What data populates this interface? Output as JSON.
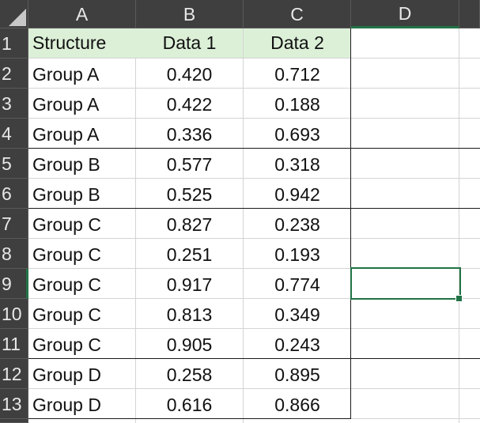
{
  "sheet": {
    "columns": [
      "A",
      "B",
      "C",
      "D"
    ],
    "rows": [
      "1",
      "2",
      "3",
      "4",
      "5",
      "6",
      "7",
      "8",
      "9",
      "10",
      "11",
      "12",
      "13"
    ],
    "active_column": "D",
    "active_row": "9",
    "header": {
      "col_a": "Structure",
      "col_b": "Data 1",
      "col_c": "Data 2"
    },
    "data": [
      {
        "structure": "Group A",
        "data1": "0.420",
        "data2": "0.712"
      },
      {
        "structure": "Group A",
        "data1": "0.422",
        "data2": "0.188"
      },
      {
        "structure": "Group A",
        "data1": "0.336",
        "data2": "0.693"
      },
      {
        "structure": "Group B",
        "data1": "0.577",
        "data2": "0.318"
      },
      {
        "structure": "Group B",
        "data1": "0.525",
        "data2": "0.942"
      },
      {
        "structure": "Group C",
        "data1": "0.827",
        "data2": "0.238"
      },
      {
        "structure": "Group C",
        "data1": "0.251",
        "data2": "0.193"
      },
      {
        "structure": "Group C",
        "data1": "0.917",
        "data2": "0.774"
      },
      {
        "structure": "Group C",
        "data1": "0.813",
        "data2": "0.349"
      },
      {
        "structure": "Group C",
        "data1": "0.905",
        "data2": "0.243"
      },
      {
        "structure": "Group D",
        "data1": "0.258",
        "data2": "0.895"
      },
      {
        "structure": "Group D",
        "data1": "0.616",
        "data2": "0.866"
      }
    ],
    "colors": {
      "header_bg": "#3f3f3f",
      "header_text": "#e8e8e8",
      "accent": "#217346",
      "table_header_fill": "#dcf0d8",
      "gridline": "#d4d4d4"
    }
  }
}
